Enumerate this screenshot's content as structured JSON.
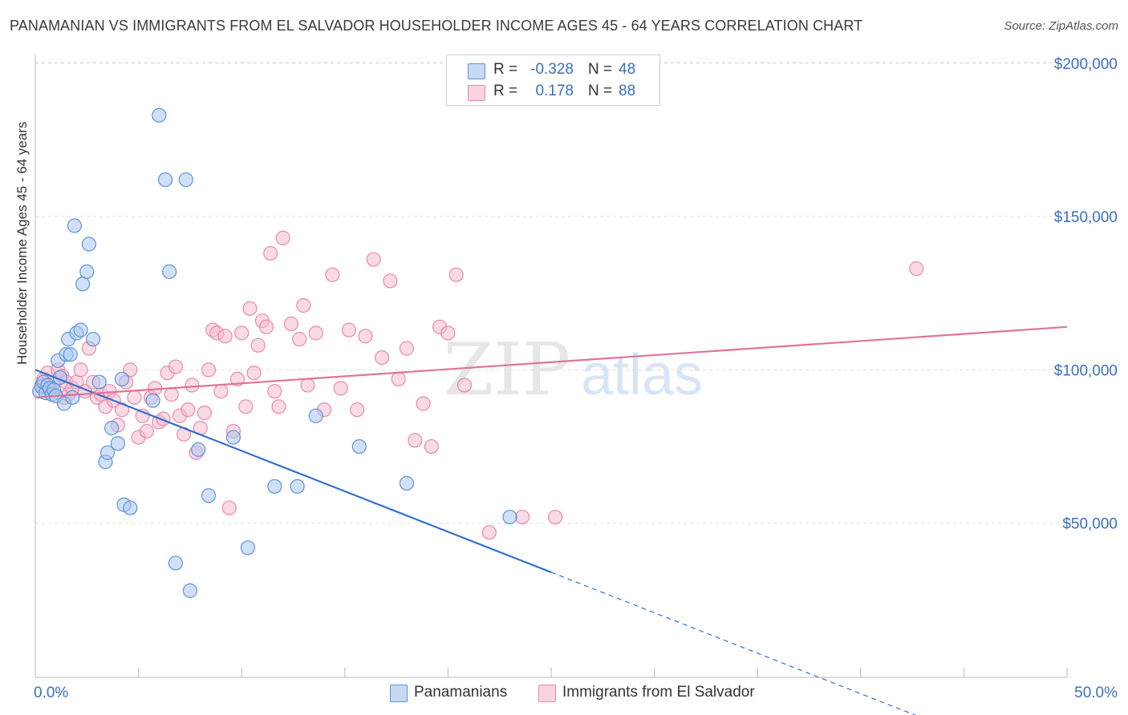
{
  "title": "PANAMANIAN VS IMMIGRANTS FROM EL SALVADOR HOUSEHOLDER INCOME AGES 45 - 64 YEARS CORRELATION CHART",
  "source": "Source: ZipAtlas.com",
  "watermark": {
    "zip": "ZIP",
    "atlas": "atlas"
  },
  "legend": {
    "r_label": "R =",
    "n_label": "N =",
    "rows": [
      {
        "r": "-0.328",
        "n": "48"
      },
      {
        "r": "0.178",
        "n": "88"
      }
    ]
  },
  "bottom_legend": [
    "Panamanians",
    "Immigrants from El Salvador"
  ],
  "colors": {
    "blue_fill": "#a9c6ee",
    "blue_stroke": "#5f93d8",
    "blue_line": "#2f6fcf",
    "pink_fill": "#f6bcd0",
    "pink_stroke": "#e88aaa",
    "pink_line": "#e0739a",
    "tick_label": "#3a6fc4",
    "grid": "#dddddd"
  },
  "chart_data": {
    "type": "scatter",
    "title": "PANAMANIAN VS IMMIGRANTS FROM EL SALVADOR HOUSEHOLDER INCOME AGES 45 - 64 YEARS CORRELATION CHART",
    "xlabel": "",
    "ylabel": "Householder Income Ages 45 - 64 years",
    "xlim": [
      0,
      50
    ],
    "ylim": [
      0,
      200000
    ],
    "x_tick_labels": [
      "0.0%",
      "50.0%"
    ],
    "y_tick_values": [
      50000,
      100000,
      150000,
      200000
    ],
    "y_tick_labels": [
      "$50,000",
      "$100,000",
      "$150,000",
      "$200,000"
    ],
    "grid": "horizontal dashed",
    "legend_position": "top-center",
    "series": [
      {
        "name": "Panamanians",
        "r": -0.328,
        "n": 48,
        "trend": {
          "x0": 0,
          "y0": 100000,
          "x1": 25,
          "y1": 34000,
          "dashed_to_x": 42.7
        },
        "points": [
          [
            0.2,
            93000
          ],
          [
            0.3,
            94500
          ],
          [
            0.4,
            96000
          ],
          [
            0.5,
            92500
          ],
          [
            0.6,
            95000
          ],
          [
            0.7,
            94000
          ],
          [
            0.8,
            92000
          ],
          [
            0.9,
            93500
          ],
          [
            1.0,
            91500
          ],
          [
            1.2,
            97500
          ],
          [
            1.1,
            103000
          ],
          [
            1.4,
            89000
          ],
          [
            1.5,
            105000
          ],
          [
            1.6,
            110000
          ],
          [
            1.7,
            105000
          ],
          [
            1.8,
            91000
          ],
          [
            2.0,
            112000
          ],
          [
            2.2,
            113000
          ],
          [
            2.3,
            128000
          ],
          [
            2.5,
            132000
          ],
          [
            2.6,
            141000
          ],
          [
            1.9,
            147000
          ],
          [
            2.8,
            110000
          ],
          [
            3.1,
            96000
          ],
          [
            3.4,
            70000
          ],
          [
            3.5,
            73000
          ],
          [
            3.7,
            81000
          ],
          [
            4.0,
            76000
          ],
          [
            4.2,
            97000
          ],
          [
            4.3,
            56000
          ],
          [
            4.6,
            55000
          ],
          [
            5.7,
            90000
          ],
          [
            6.0,
            183000
          ],
          [
            6.3,
            162000
          ],
          [
            6.5,
            132000
          ],
          [
            7.3,
            162000
          ],
          [
            6.8,
            37000
          ],
          [
            7.5,
            28000
          ],
          [
            7.9,
            74000
          ],
          [
            8.4,
            59000
          ],
          [
            9.6,
            78000
          ],
          [
            10.3,
            42000
          ],
          [
            11.6,
            62000
          ],
          [
            12.7,
            62000
          ],
          [
            13.6,
            85000
          ],
          [
            15.7,
            75000
          ],
          [
            18.0,
            63000
          ],
          [
            23.0,
            52000
          ]
        ]
      },
      {
        "name": "Immigrants from El Salvador",
        "r": 0.178,
        "n": 88,
        "trend": {
          "x0": 0,
          "y0": 91000,
          "x1": 50,
          "y1": 114000
        },
        "points": [
          [
            0.3,
            95000
          ],
          [
            0.4,
            97000
          ],
          [
            0.6,
            99000
          ],
          [
            0.8,
            94000
          ],
          [
            1.1,
            100000
          ],
          [
            1.3,
            98000
          ],
          [
            1.4,
            91000
          ],
          [
            1.5,
            96000
          ],
          [
            1.6,
            92000
          ],
          [
            1.8,
            94000
          ],
          [
            2.0,
            96000
          ],
          [
            2.2,
            100000
          ],
          [
            2.4,
            93000
          ],
          [
            2.6,
            107000
          ],
          [
            2.8,
            96000
          ],
          [
            3.0,
            91000
          ],
          [
            3.2,
            92000
          ],
          [
            3.4,
            88000
          ],
          [
            3.6,
            93000
          ],
          [
            3.8,
            90000
          ],
          [
            4.0,
            82000
          ],
          [
            4.2,
            87000
          ],
          [
            4.4,
            96000
          ],
          [
            4.6,
            100000
          ],
          [
            4.8,
            91000
          ],
          [
            5.0,
            78000
          ],
          [
            5.2,
            85000
          ],
          [
            5.4,
            80000
          ],
          [
            5.6,
            91000
          ],
          [
            5.8,
            94000
          ],
          [
            6.0,
            83000
          ],
          [
            6.2,
            84000
          ],
          [
            6.4,
            99000
          ],
          [
            6.6,
            92000
          ],
          [
            6.8,
            101000
          ],
          [
            7.0,
            85000
          ],
          [
            7.2,
            79000
          ],
          [
            7.4,
            87000
          ],
          [
            7.6,
            95000
          ],
          [
            7.8,
            73000
          ],
          [
            8.0,
            81000
          ],
          [
            8.2,
            86000
          ],
          [
            8.4,
            100000
          ],
          [
            8.6,
            113000
          ],
          [
            8.8,
            112000
          ],
          [
            9.0,
            93000
          ],
          [
            9.2,
            111000
          ],
          [
            9.4,
            55000
          ],
          [
            9.6,
            80000
          ],
          [
            9.8,
            97000
          ],
          [
            10.0,
            112000
          ],
          [
            10.2,
            88000
          ],
          [
            10.4,
            120000
          ],
          [
            10.6,
            99000
          ],
          [
            10.8,
            108000
          ],
          [
            11.0,
            116000
          ],
          [
            11.2,
            114000
          ],
          [
            11.4,
            138000
          ],
          [
            11.6,
            93000
          ],
          [
            11.8,
            88000
          ],
          [
            12.0,
            143000
          ],
          [
            12.4,
            115000
          ],
          [
            12.8,
            110000
          ],
          [
            13.0,
            121000
          ],
          [
            13.2,
            95000
          ],
          [
            13.6,
            112000
          ],
          [
            14.0,
            87000
          ],
          [
            14.4,
            131000
          ],
          [
            14.8,
            94000
          ],
          [
            15.2,
            113000
          ],
          [
            15.6,
            87000
          ],
          [
            16.0,
            111000
          ],
          [
            16.4,
            136000
          ],
          [
            16.8,
            104000
          ],
          [
            17.2,
            129000
          ],
          [
            17.6,
            97000
          ],
          [
            18.0,
            107000
          ],
          [
            18.4,
            77000
          ],
          [
            18.8,
            89000
          ],
          [
            19.2,
            75000
          ],
          [
            19.6,
            114000
          ],
          [
            20.0,
            112000
          ],
          [
            20.4,
            131000
          ],
          [
            20.8,
            95000
          ],
          [
            22.0,
            47000
          ],
          [
            23.6,
            52000
          ],
          [
            25.2,
            52000
          ],
          [
            42.7,
            133000
          ]
        ]
      }
    ]
  }
}
